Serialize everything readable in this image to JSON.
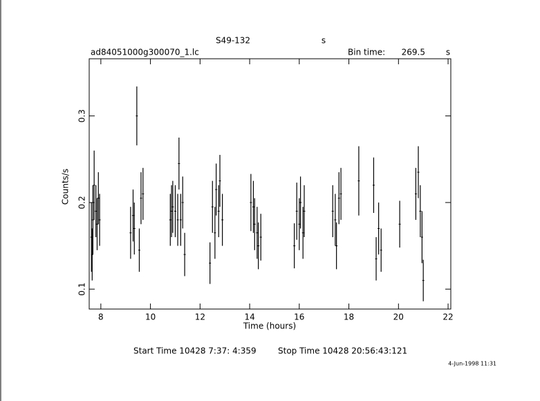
{
  "chart_data": {
    "type": "errorbar",
    "title": "S49-132",
    "title_unit": "s",
    "file": "ad84051000g300070_1.lc",
    "bin_label": "Bin time:",
    "bin_time": "269.5",
    "bin_unit": "s",
    "xlabel": "Time (hours)",
    "ylabel": "Counts/s",
    "start_time": "Start Time 10428  7:37: 4:359",
    "stop_time": "Stop Time 10428 20:56:43:121",
    "date": "4-Jun-1998 11:31",
    "xlim": [
      7.53,
      22.11
    ],
    "ylim": [
      0.077,
      0.366
    ],
    "xticks": [
      8,
      10,
      12,
      14,
      16,
      18,
      20,
      22
    ],
    "yticks": [
      0.1,
      0.2,
      0.3
    ],
    "color": "#000000",
    "x": [
      7.62,
      7.65,
      7.68,
      7.73,
      7.8,
      7.85,
      7.9,
      7.95,
      9.2,
      9.3,
      9.35,
      9.45,
      9.55,
      9.62,
      9.7,
      10.8,
      10.85,
      10.9,
      11.0,
      11.1,
      11.15,
      11.22,
      11.3,
      11.38,
      12.4,
      12.5,
      12.6,
      12.65,
      12.75,
      12.8,
      12.9,
      14.05,
      14.15,
      14.2,
      14.3,
      14.35,
      14.45,
      15.8,
      15.9,
      16.0,
      16.05,
      16.15,
      16.2,
      17.35,
      17.45,
      17.5,
      17.6,
      17.68,
      18.4,
      19.0,
      19.1,
      19.2,
      19.3,
      20.05,
      20.7,
      20.8,
      20.88,
      20.95,
      21.0
    ],
    "values": [
      0.16,
      0.14,
      0.18,
      0.22,
      0.19,
      0.175,
      0.205,
      0.18,
      0.165,
      0.185,
      0.17,
      0.3,
      0.145,
      0.205,
      0.21,
      0.18,
      0.19,
      0.195,
      0.19,
      0.18,
      0.245,
      0.18,
      0.2,
      0.14,
      0.13,
      0.195,
      0.165,
      0.215,
      0.19,
      0.225,
      0.18,
      0.2,
      0.195,
      0.175,
      0.165,
      0.15,
      0.16,
      0.15,
      0.19,
      0.175,
      0.2,
      0.165,
      0.19,
      0.19,
      0.18,
      0.15,
      0.205,
      0.21,
      0.225,
      0.22,
      0.135,
      0.17,
      0.145,
      0.175,
      0.21,
      0.235,
      0.19,
      0.16,
      0.11
    ],
    "errors": [
      0.04,
      0.03,
      0.04,
      0.04,
      0.03,
      0.03,
      0.03,
      0.03,
      0.03,
      0.03,
      0.03,
      0.034,
      0.025,
      0.03,
      0.03,
      0.03,
      0.03,
      0.03,
      0.03,
      0.03,
      0.03,
      0.03,
      0.03,
      0.025,
      0.024,
      0.03,
      0.03,
      0.03,
      0.03,
      0.03,
      0.03,
      0.033,
      0.03,
      0.03,
      0.03,
      0.027,
      0.027,
      0.026,
      0.033,
      0.03,
      0.03,
      0.03,
      0.03,
      0.03,
      0.03,
      0.027,
      0.03,
      0.03,
      0.04,
      0.032,
      0.025,
      0.03,
      0.025,
      0.027,
      0.03,
      0.03,
      0.03,
      0.03,
      0.024
    ]
  }
}
